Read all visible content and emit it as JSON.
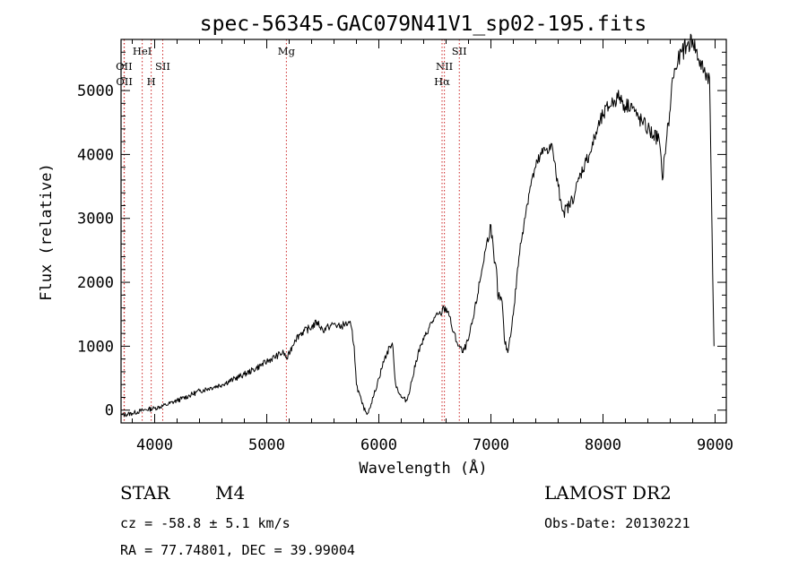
{
  "chart_data": {
    "type": "line",
    "title": "spec-56345-GAC079N41V1_sp02-195.fits",
    "xlabel": "Wavelength (Å)",
    "ylabel": "Flux (relative)",
    "xlim": [
      3700,
      9100
    ],
    "ylim": [
      -200,
      5800
    ],
    "x_ticks": [
      4000,
      5000,
      6000,
      7000,
      8000,
      9000
    ],
    "y_ticks": [
      0,
      1000,
      2000,
      3000,
      4000,
      5000
    ],
    "grid": false,
    "series": [
      {
        "x": [
          3700,
          3800,
          3900,
          4000,
          4100,
          4200,
          4300,
          4400,
          4500,
          4600,
          4700,
          4800,
          4900,
          5000,
          5100,
          5150,
          5180,
          5250,
          5300,
          5400,
          5450,
          5500,
          5550,
          5600,
          5650,
          5700,
          5750,
          5780,
          5800,
          5850,
          5880,
          5900,
          5950,
          6000,
          6050,
          6100,
          6120,
          6150,
          6200,
          6250,
          6300,
          6350,
          6400,
          6450,
          6500,
          6550,
          6580,
          6620,
          6650,
          6700,
          6750,
          6800,
          6850,
          6900,
          6950,
          7000,
          7030,
          7050,
          7060,
          7100,
          7120,
          7150,
          7200,
          7250,
          7300,
          7350,
          7400,
          7450,
          7500,
          7550,
          7580,
          7600,
          7620,
          7650,
          7700,
          7750,
          7800,
          7850,
          7900,
          7950,
          8000,
          8050,
          8100,
          8150,
          8200,
          8250,
          8300,
          8350,
          8400,
          8450,
          8500,
          8530,
          8550,
          8570,
          8600,
          8620,
          8650,
          8700,
          8750,
          8800,
          8850,
          8900,
          8950,
          8990
        ],
        "y": [
          -80,
          -50,
          0,
          30,
          80,
          150,
          220,
          300,
          350,
          400,
          480,
          560,
          650,
          760,
          860,
          900,
          800,
          1100,
          1200,
          1300,
          1380,
          1250,
          1300,
          1350,
          1300,
          1350,
          1330,
          1000,
          400,
          100,
          -20,
          -50,
          200,
          500,
          800,
          1000,
          1050,
          400,
          200,
          150,
          500,
          900,
          1100,
          1300,
          1450,
          1500,
          1600,
          1550,
          1300,
          1050,
          900,
          1100,
          1500,
          2000,
          2500,
          2900,
          2300,
          2200,
          1800,
          1700,
          1100,
          900,
          1500,
          2400,
          3000,
          3500,
          3800,
          4000,
          4100,
          4100,
          3700,
          3500,
          3300,
          3100,
          3200,
          3400,
          3700,
          3900,
          4100,
          4400,
          4600,
          4750,
          4850,
          4900,
          4750,
          4800,
          4600,
          4500,
          4400,
          4300,
          4250,
          3600,
          4000,
          4300,
          4700,
          5200,
          5350,
          5600,
          5700,
          5800,
          5500,
          5300,
          5200,
          1000
        ]
      }
    ],
    "line_markers": [
      {
        "name": "OII",
        "x": 3727,
        "tier": "low"
      },
      {
        "name": "OII",
        "x": 3729,
        "tier": "mid"
      },
      {
        "name": "HeI",
        "x": 3889,
        "tier": "top"
      },
      {
        "name": "H",
        "x": 3969,
        "tier": "mid"
      },
      {
        "name": "SII",
        "x": 4072,
        "tier": "low"
      },
      {
        "name": "Mg",
        "x": 5175,
        "tier": "top"
      },
      {
        "name": "NII",
        "x": 6585,
        "tier": "low"
      },
      {
        "name": "Hα",
        "x": 6564,
        "tier": "mid"
      },
      {
        "name": "SII",
        "x": 6718,
        "tier": "top"
      }
    ],
    "line_marker_color": "#cc2222"
  },
  "info": {
    "object_class": "STAR",
    "subclass": "M4",
    "survey": "LAMOST DR2",
    "cz": "cz = -58.8 ± 5.1 km/s",
    "obs_date": "Obs-Date: 20130221",
    "coords": "RA =  77.74801, DEC =  39.99004"
  }
}
